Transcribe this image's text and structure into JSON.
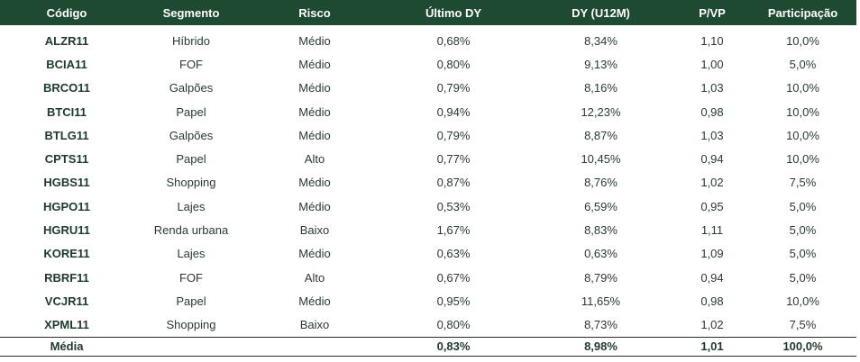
{
  "table": {
    "headers": [
      "Código",
      "Segmento",
      "Risco",
      "Último DY",
      "DY (U12M)",
      "P/VP",
      "Participação"
    ],
    "rows": [
      [
        "ALZR11",
        "Híbrido",
        "Médio",
        "0,68%",
        "8,34%",
        "1,10",
        "10,0%"
      ],
      [
        "BCIA11",
        "FOF",
        "Médio",
        "0,80%",
        "9,13%",
        "1,00",
        "5,0%"
      ],
      [
        "BRCO11",
        "Galpões",
        "Médio",
        "0,79%",
        "8,16%",
        "1,03",
        "10,0%"
      ],
      [
        "BTCI11",
        "Papel",
        "Médio",
        "0,94%",
        "12,23%",
        "0,98",
        "10,0%"
      ],
      [
        "BTLG11",
        "Galpões",
        "Médio",
        "0,79%",
        "8,87%",
        "1,03",
        "10,0%"
      ],
      [
        "CPTS11",
        "Papel",
        "Alto",
        "0,77%",
        "10,45%",
        "0,94",
        "10,0%"
      ],
      [
        "HGBS11",
        "Shopping",
        "Médio",
        "0,87%",
        "8,76%",
        "1,02",
        "7,5%"
      ],
      [
        "HGPO11",
        "Lajes",
        "Médio",
        "0,53%",
        "6,59%",
        "0,95",
        "5,0%"
      ],
      [
        "HGRU11",
        "Renda urbana",
        "Baixo",
        "1,67%",
        "8,83%",
        "1,11",
        "5,0%"
      ],
      [
        "KORE11",
        "Lajes",
        "Médio",
        "0,63%",
        "0,63%",
        "1,09",
        "5,0%"
      ],
      [
        "RBRF11",
        "FOF",
        "Alto",
        "0,67%",
        "8,79%",
        "0,94",
        "5,0%"
      ],
      [
        "VCJR11",
        "Papel",
        "Médio",
        "0,95%",
        "11,65%",
        "0,98",
        "10,0%"
      ],
      [
        "XPML11",
        "Shopping",
        "Baixo",
        "0,80%",
        "8,73%",
        "1,02",
        "7,5%"
      ]
    ],
    "footer": [
      "Média",
      "",
      "",
      "0,83%",
      "8,98%",
      "1,01",
      "100,0%"
    ]
  },
  "colors": {
    "header_bg": "#1e4a31",
    "header_text": "#ffffff",
    "body_text": "#2a3b30"
  }
}
